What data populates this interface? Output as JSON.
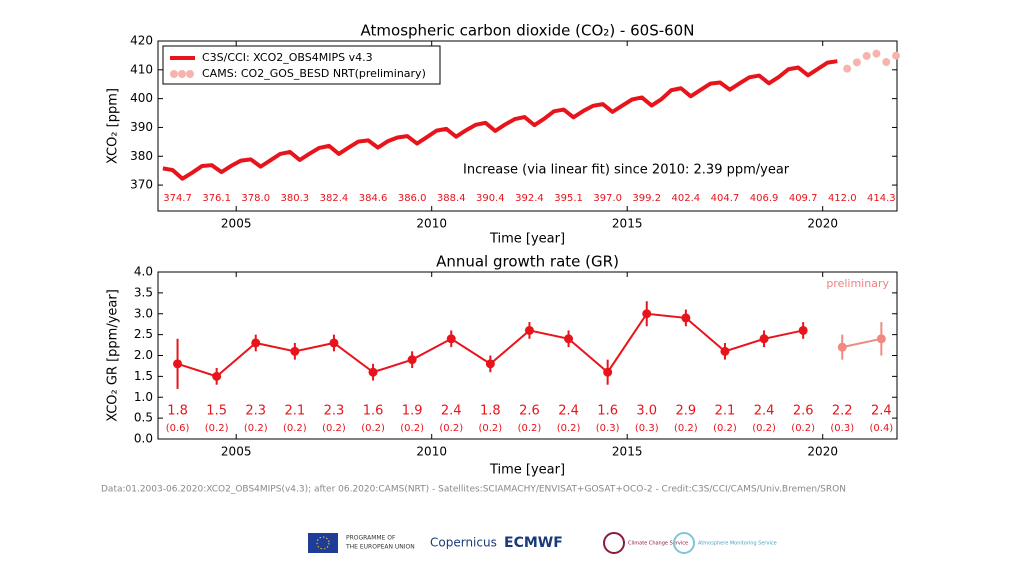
{
  "chart_data": [
    {
      "type": "line",
      "title": "Atmospheric carbon dioxide (CO₂) - 60S-60N",
      "x_label": "Time [year]",
      "y_label": "XCO₂ [ppm]",
      "xlim": [
        2003,
        2021.9
      ],
      "xticks": [
        2005,
        2010,
        2015,
        2020
      ],
      "ylim": [
        361,
        420
      ],
      "yticks": [
        370,
        380,
        390,
        400,
        410,
        420
      ],
      "legend": "upper left",
      "annotation": "Increase (via linear fit) since 2010: 2.39 ppm/year",
      "series": [
        {
          "name": "C3S/CCI: XCO2_OBS4MIPS v4.3",
          "color": "#e8141c",
          "marker": "line",
          "x": [
            2003.125,
            2003.375,
            2003.625,
            2003.875,
            2004.125,
            2004.375,
            2004.625,
            2004.875,
            2005.125,
            2005.375,
            2005.625,
            2005.875,
            2006.125,
            2006.375,
            2006.625,
            2006.875,
            2007.125,
            2007.375,
            2007.625,
            2007.875,
            2008.125,
            2008.375,
            2008.625,
            2008.875,
            2009.125,
            2009.375,
            2009.625,
            2009.875,
            2010.125,
            2010.375,
            2010.625,
            2010.875,
            2011.125,
            2011.375,
            2011.625,
            2011.875,
            2012.125,
            2012.375,
            2012.625,
            2012.875,
            2013.125,
            2013.375,
            2013.625,
            2013.875,
            2014.125,
            2014.375,
            2014.625,
            2014.875,
            2015.125,
            2015.375,
            2015.625,
            2015.875,
            2016.125,
            2016.375,
            2016.625,
            2016.875,
            2017.125,
            2017.375,
            2017.625,
            2017.875,
            2018.125,
            2018.375,
            2018.625,
            2018.875,
            2019.125,
            2019.375,
            2019.625,
            2019.875,
            2020.125,
            2020.375
          ],
          "values": [
            375.8,
            375.2,
            372.2,
            374.3,
            376.6,
            376.9,
            374.5,
            376.7,
            378.5,
            378.9,
            376.4,
            378.6,
            380.8,
            381.5,
            378.7,
            380.9,
            382.9,
            383.6,
            380.8,
            383.0,
            385.1,
            385.5,
            383.0,
            385.2,
            386.5,
            387.0,
            384.4,
            386.6,
            388.9,
            389.5,
            386.8,
            389.0,
            390.9,
            391.6,
            388.8,
            391.0,
            392.9,
            393.6,
            390.8,
            393.0,
            395.6,
            396.2,
            393.5,
            395.7,
            397.5,
            398.1,
            395.4,
            397.6,
            399.7,
            400.4,
            397.6,
            399.8,
            402.9,
            403.6,
            400.8,
            403.0,
            405.2,
            405.6,
            403.1,
            405.3,
            407.4,
            408.0,
            405.3,
            407.5,
            410.2,
            410.8,
            408.1,
            410.3,
            412.5,
            413.0
          ]
        },
        {
          "name": "CAMS: CO2_GOS_BESD NRT(preliminary)",
          "color": "#f7b4ae",
          "marker": "dots",
          "x": [
            2020.625,
            2020.875,
            2021.125,
            2021.375,
            2021.625,
            2021.875
          ],
          "values": [
            410.4,
            412.6,
            414.8,
            415.6,
            412.7,
            414.9
          ]
        }
      ],
      "annual_means": {
        "color": "#e8141c",
        "x": [
          2003.5,
          2004.5,
          2005.5,
          2006.5,
          2007.5,
          2008.5,
          2009.5,
          2010.5,
          2011.5,
          2012.5,
          2013.5,
          2014.5,
          2015.5,
          2016.5,
          2017.5,
          2018.5,
          2019.5,
          2020.5,
          2021.5
        ],
        "values": [
          374.7,
          376.1,
          378,
          380.3,
          382.4,
          384.6,
          386,
          388.4,
          390.4,
          392.4,
          395.1,
          397,
          399.2,
          402.4,
          404.7,
          406.9,
          409.7,
          412,
          414.3
        ],
        "value_labels": [
          "374.7",
          "376.1",
          "378.0",
          "380.3",
          "382.4",
          "384.6",
          "386.0",
          "388.4",
          "390.4",
          "392.4",
          "395.1",
          "397.0",
          "399.2",
          "402.4",
          "404.7",
          "406.9",
          "409.7",
          "412.0",
          "414.3"
        ]
      }
    },
    {
      "type": "errorbar",
      "title": "Annual growth rate (GR)",
      "x_label": "Time [year]",
      "y_label": "XCO₂ GR [ppm/year]",
      "xlim": [
        2003,
        2021.9
      ],
      "xticks": [
        2005,
        2010,
        2015,
        2020
      ],
      "ylim": [
        0,
        4
      ],
      "yticks": [
        {
          "value": 0,
          "label": "0.0"
        },
        {
          "value": 0.5,
          "label": "0.5"
        },
        {
          "value": 1,
          "label": "1.0"
        },
        {
          "value": 1.5,
          "label": "1.5"
        },
        {
          "value": 2,
          "label": "2.0"
        },
        {
          "value": 2.5,
          "label": "2.5"
        },
        {
          "value": 3,
          "label": "3.0"
        },
        {
          "value": 3.5,
          "label": "3.5"
        },
        {
          "value": 4,
          "label": "4.0"
        }
      ],
      "annotation": "preliminary",
      "annotation_color": "#f08080",
      "series": [
        {
          "color": "#e8141c",
          "label_color": "#e8141c",
          "x": [
            2003.5,
            2004.5,
            2005.5,
            2006.5,
            2007.5,
            2008.5,
            2009.5,
            2010.5,
            2011.5,
            2012.5,
            2013.5,
            2014.5,
            2015.5,
            2016.5,
            2017.5,
            2018.5,
            2019.5
          ],
          "values": [
            1.8,
            1.5,
            2.3,
            2.1,
            2.3,
            1.6,
            1.9,
            2.4,
            1.8,
            2.6,
            2.4,
            1.6,
            3,
            2.9,
            2.1,
            2.4,
            2.6
          ],
          "value_labels": [
            "1.8",
            "1.5",
            "2.3",
            "2.1",
            "2.3",
            "1.6",
            "1.9",
            "2.4",
            "1.8",
            "2.6",
            "2.4",
            "1.6",
            "3.0",
            "2.9",
            "2.1",
            "2.4",
            "2.6"
          ],
          "errors": [
            0.6,
            0.2,
            0.2,
            0.2,
            0.2,
            0.2,
            0.2,
            0.2,
            0.2,
            0.2,
            0.2,
            0.3,
            0.3,
            0.2,
            0.2,
            0.2,
            0.2
          ],
          "error_labels": [
            "(0.6)",
            "(0.2)",
            "(0.2)",
            "(0.2)",
            "(0.2)",
            "(0.2)",
            "(0.2)",
            "(0.2)",
            "(0.2)",
            "(0.2)",
            "(0.2)",
            "(0.3)",
            "(0.3)",
            "(0.2)",
            "(0.2)",
            "(0.2)",
            "(0.2)"
          ]
        },
        {
          "color": "#f08a80",
          "label_color": "#e8141c",
          "x": [
            2020.5,
            2021.5
          ],
          "values": [
            2.2,
            2.4
          ],
          "value_labels": [
            "2.2",
            "2.4"
          ],
          "errors": [
            0.3,
            0.4
          ],
          "error_labels": [
            "(0.3)",
            "(0.4)"
          ]
        }
      ]
    }
  ],
  "credit": "Data:01.2003-06.2020:XCO2_OBS4MIPS(v4.3); after 06.2020:CAMS(NRT) - Satellites:SCIAMACHY/ENVISAT+GOSAT+OCO-2 - Credit:C3S/CCI/CAMS/Univ.Bremen/SRON",
  "logos": [
    "PROGRAMME OF",
    "THE EUROPEAN UNION",
    "Copernicus",
    "ECMWF",
    "Climate Change Service",
    "Atmosphere Monitoring Service"
  ]
}
